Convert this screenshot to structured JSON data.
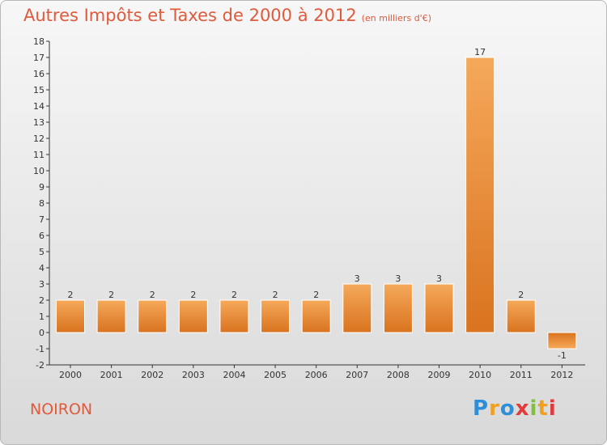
{
  "header": {
    "title": "Autres Impôts et Taxes de 2000 à 2012",
    "subtitle": "(en milliers d'€)"
  },
  "footer": {
    "commune": "NOIRON",
    "logo_text": "Proxiti",
    "logo_colors": [
      "#2e8fd8",
      "#f0a020",
      "#2e8fd8",
      "#e03c3c",
      "#80c040",
      "#f0a020",
      "#e03c3c"
    ]
  },
  "colors": {
    "bar_light": "#f5a95a",
    "bar_dark": "#d9731f",
    "title": "#e05a3c",
    "axis": "#333333"
  },
  "chart_data": {
    "type": "bar",
    "categories": [
      "2000",
      "2001",
      "2002",
      "2003",
      "2004",
      "2005",
      "2006",
      "2007",
      "2008",
      "2009",
      "2010",
      "2011",
      "2012"
    ],
    "values": [
      2,
      2,
      2,
      2,
      2,
      2,
      2,
      3,
      3,
      3,
      17,
      2,
      -1
    ],
    "value_labels": [
      "2",
      "2",
      "2",
      "2",
      "2",
      "2",
      "2",
      "3",
      "3",
      "3",
      "17",
      "2",
      "-1"
    ],
    "title": "Autres Impôts et Taxes de 2000 à 2012",
    "subtitle": "(en milliers d'€)",
    "ylim": [
      -2,
      18
    ],
    "yticks": [
      -2,
      -1,
      0,
      1,
      2,
      3,
      4,
      5,
      6,
      7,
      8,
      9,
      10,
      11,
      12,
      13,
      14,
      15,
      16,
      17,
      18
    ],
    "grid": false,
    "legend": "none"
  }
}
